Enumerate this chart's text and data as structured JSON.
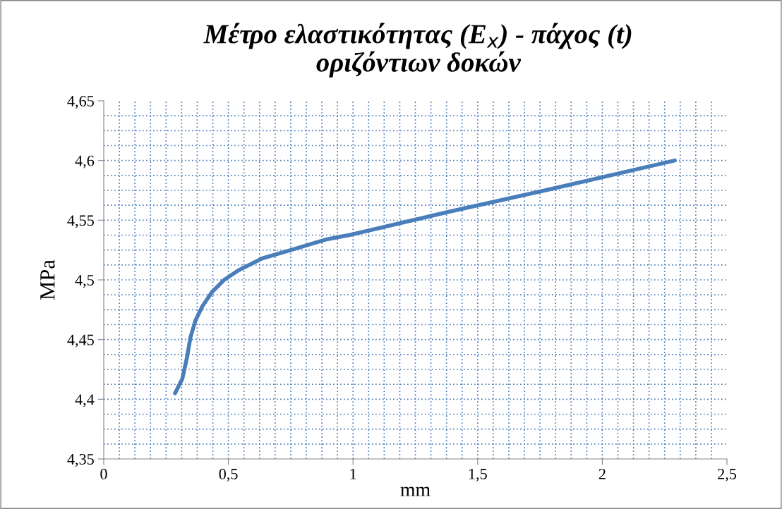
{
  "chart_data": {
    "type": "line",
    "title": "Μέτρο ελαστικότητας (E$_{x}$) - πάχος (t)\nοριζόντιων δοκών",
    "xlabel": "mm",
    "ylabel": "MPa",
    "series": [
      {
        "color": "#4a7ebb",
        "x": [
          0.286,
          0.315,
          0.334,
          0.348,
          0.368,
          0.396,
          0.435,
          0.483,
          0.54,
          0.636,
          0.751,
          0.895,
          0.994,
          1.383,
          1.771,
          2.291
        ],
        "values": [
          4.405,
          4.417,
          4.435,
          4.452,
          4.466,
          4.478,
          4.49,
          4.5,
          4.508,
          4.518,
          4.525,
          4.534,
          4.538,
          4.557,
          4.575,
          4.6
        ]
      }
    ],
    "xlim": [
      0,
      2.5
    ],
    "ylim": [
      4.35,
      4.65
    ],
    "xticks": [
      0,
      {
        "value": 0.5,
        "label": "0,5"
      },
      1,
      {
        "value": 1.5,
        "label": "1,5"
      },
      2,
      {
        "value": 2.5,
        "label": "2,5"
      }
    ],
    "yticks": [
      {
        "value": 4.35,
        "label": "4,35"
      },
      {
        "value": 4.4,
        "label": "4,4"
      },
      {
        "value": 4.45,
        "label": "4,45"
      },
      {
        "value": 4.5,
        "label": "4,5"
      },
      {
        "value": 4.55,
        "label": "4,55"
      },
      {
        "value": 4.6,
        "label": "4,6"
      },
      {
        "value": 4.65,
        "label": "4,65"
      }
    ],
    "grid": true,
    "legend": false,
    "marker": "none",
    "line_style": "solid"
  }
}
